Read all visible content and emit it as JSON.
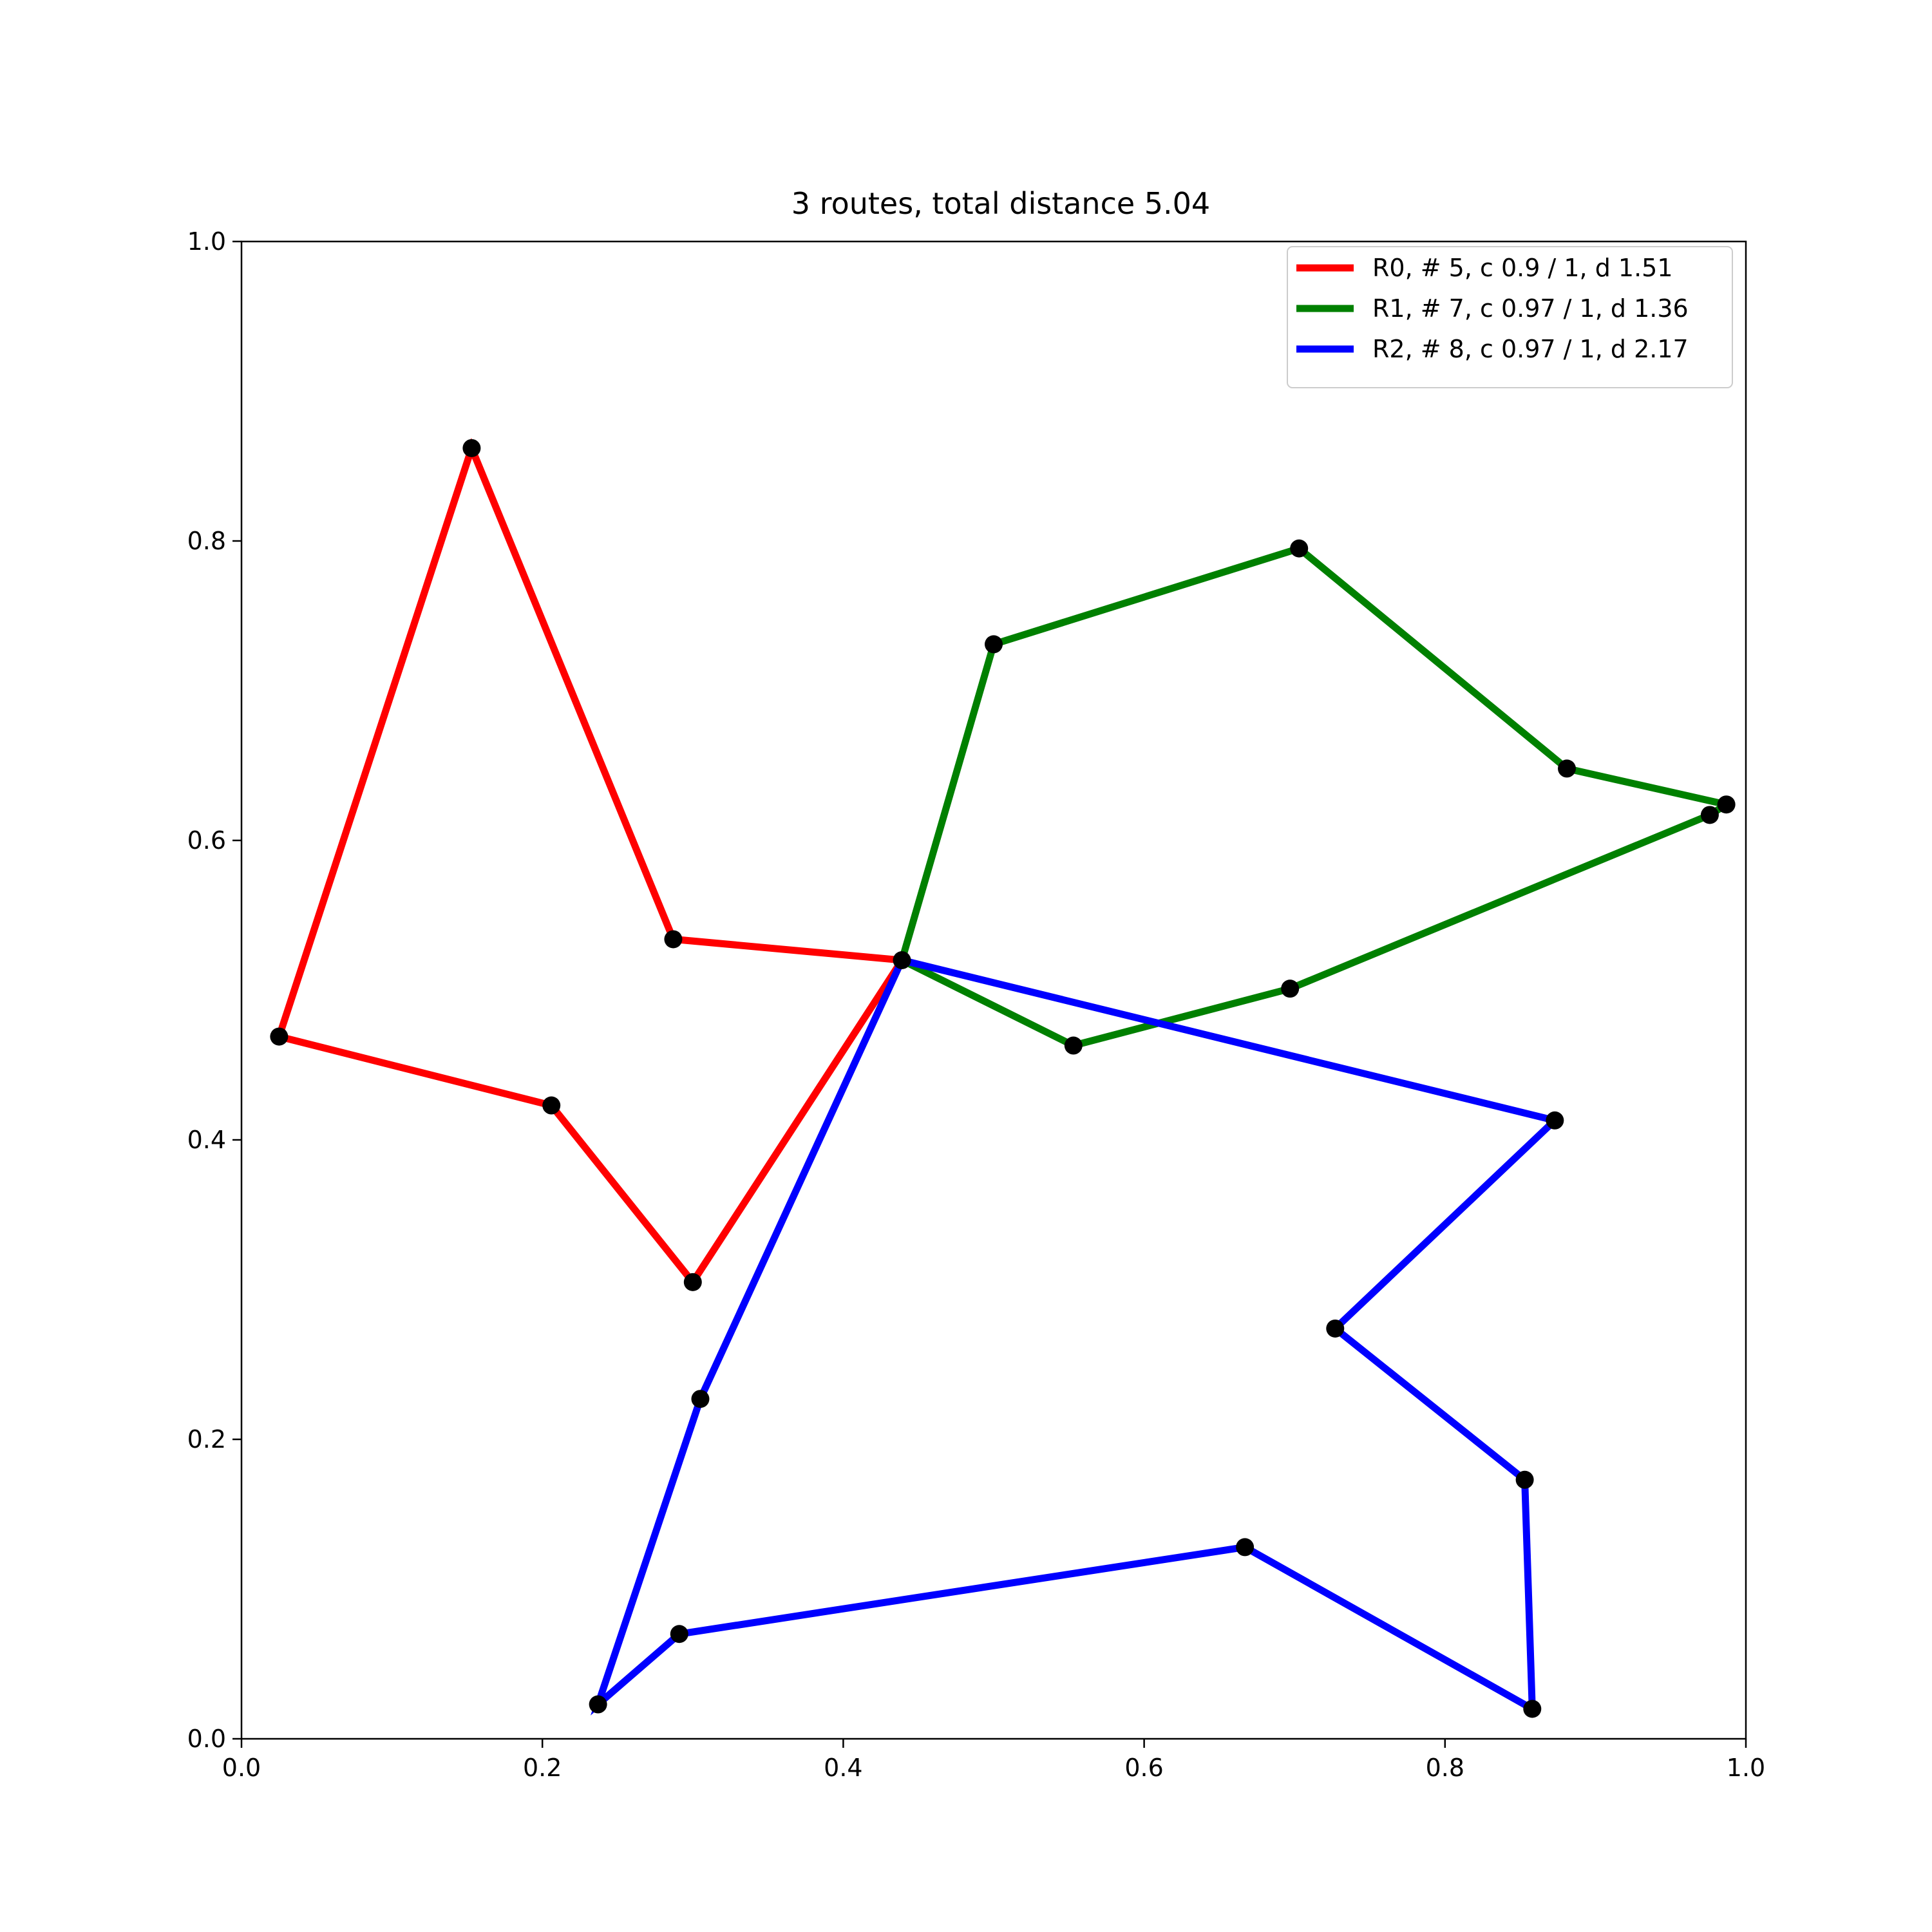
{
  "chart_data": {
    "type": "line",
    "title": "3 routes, total distance 5.04",
    "xlabel": "",
    "ylabel": "",
    "xlim": [
      0,
      1
    ],
    "ylim": [
      0,
      1
    ],
    "x_ticks": [
      "0.0",
      "0.2",
      "0.4",
      "0.6",
      "0.8",
      "1.0"
    ],
    "y_ticks": [
      "0.0",
      "0.2",
      "0.4",
      "0.6",
      "0.8",
      "1.0"
    ],
    "grid": false,
    "legend_position": "top-right",
    "point_color": "#000000",
    "series": [
      {
        "name": "R0, # 5, c 0.9 / 1, d 1.51",
        "color": "#ff0000",
        "points": [
          [
            0.439,
            0.52
          ],
          [
            0.287,
            0.534
          ],
          [
            0.153,
            0.862
          ],
          [
            0.025,
            0.469
          ],
          [
            0.206,
            0.423
          ],
          [
            0.3,
            0.305
          ],
          [
            0.439,
            0.52
          ]
        ]
      },
      {
        "name": "R1, # 7, c 0.97 / 1, d 1.36",
        "color": "#008000",
        "points": [
          [
            0.439,
            0.52
          ],
          [
            0.5,
            0.731
          ],
          [
            0.703,
            0.795
          ],
          [
            0.881,
            0.648
          ],
          [
            0.987,
            0.624
          ],
          [
            0.976,
            0.617
          ],
          [
            0.697,
            0.501
          ],
          [
            0.553,
            0.463
          ],
          [
            0.439,
            0.52
          ]
        ]
      },
      {
        "name": "R2, # 8, c 0.97 / 1, d 2.17",
        "color": "#0000ff",
        "points": [
          [
            0.439,
            0.52
          ],
          [
            0.873,
            0.413
          ],
          [
            0.727,
            0.274
          ],
          [
            0.853,
            0.173
          ],
          [
            0.858,
            0.02
          ],
          [
            0.667,
            0.128
          ],
          [
            0.291,
            0.07
          ],
          [
            0.237,
            0.023
          ],
          [
            0.305,
            0.227
          ],
          [
            0.439,
            0.52
          ]
        ]
      }
    ]
  }
}
